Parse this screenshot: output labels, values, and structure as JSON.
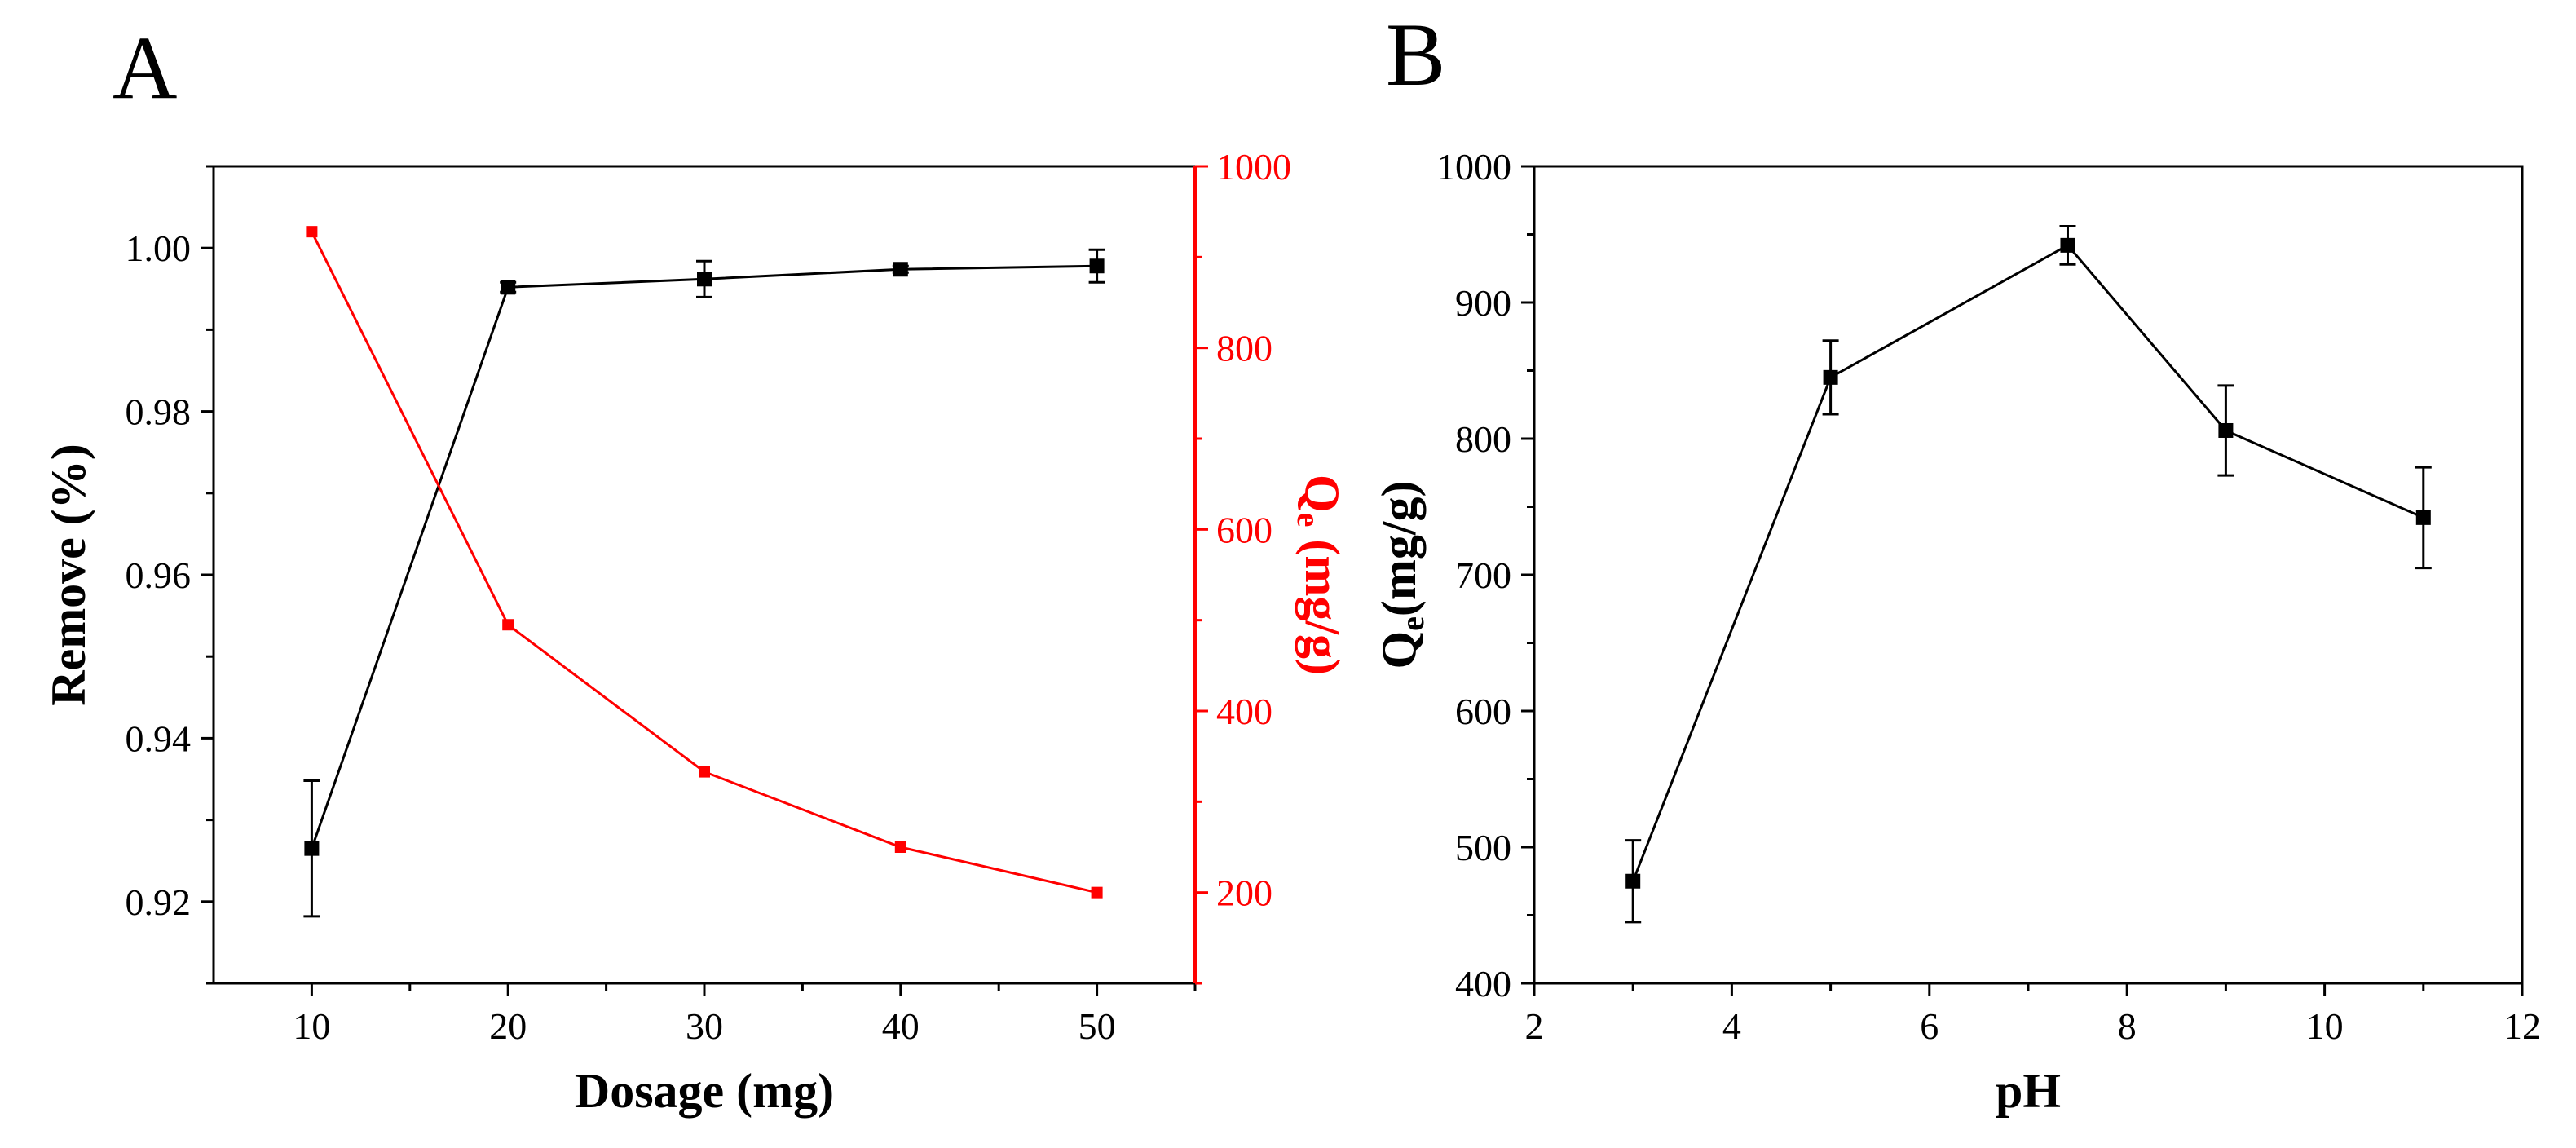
{
  "chart_data": [
    {
      "panel": "A",
      "type": "line",
      "xlabel": "Dosage (mg)",
      "ylabel": "Remove (%)",
      "ylabel_right": {
        "main": "Q",
        "sub": "e",
        "rest": " (mg/g)"
      },
      "xlim": [
        5,
        55
      ],
      "ylim": [
        0.91,
        1.01
      ],
      "ylim_right": [
        100,
        1000
      ],
      "x_ticks": [
        "10",
        "20",
        "30",
        "40",
        "50"
      ],
      "y_ticks": [
        "0.92",
        "0.94",
        "0.96",
        "0.98",
        "1.00"
      ],
      "y_ticks_right": [
        "200",
        "400",
        "600",
        "800",
        "1000"
      ],
      "x": [
        10,
        20,
        30,
        40,
        50
      ],
      "series": [
        {
          "axis": "left",
          "color": "#000000",
          "values": [
            0.9265,
            0.9952,
            0.9962,
            0.9974,
            0.9978
          ],
          "errors": [
            0.0083,
            0.0006,
            0.0022,
            0.0004,
            0.002
          ]
        },
        {
          "axis": "right",
          "color": "#ff0000",
          "values": [
            928,
            495,
            333,
            250,
            200
          ],
          "errors": [
            0,
            0,
            0,
            0,
            0
          ]
        }
      ],
      "grid": false
    },
    {
      "panel": "B",
      "type": "line",
      "xlabel": "pH",
      "ylabel": {
        "main": "Q",
        "sub": "e",
        "rest": "(mg/g)"
      },
      "xlim": [
        2,
        12
      ],
      "ylim": [
        400,
        1000
      ],
      "x_ticks": [
        "2",
        "4",
        "6",
        "8",
        "10",
        "12"
      ],
      "y_ticks": [
        "400",
        "500",
        "600",
        "700",
        "800",
        "900",
        "1000"
      ],
      "x": [
        3,
        5,
        7.4,
        9,
        11
      ],
      "series": [
        {
          "axis": "left",
          "color": "#000000",
          "values": [
            475,
            845,
            942,
            806,
            742
          ],
          "errors": [
            30,
            27,
            14,
            33,
            37
          ]
        }
      ],
      "grid": false
    }
  ]
}
